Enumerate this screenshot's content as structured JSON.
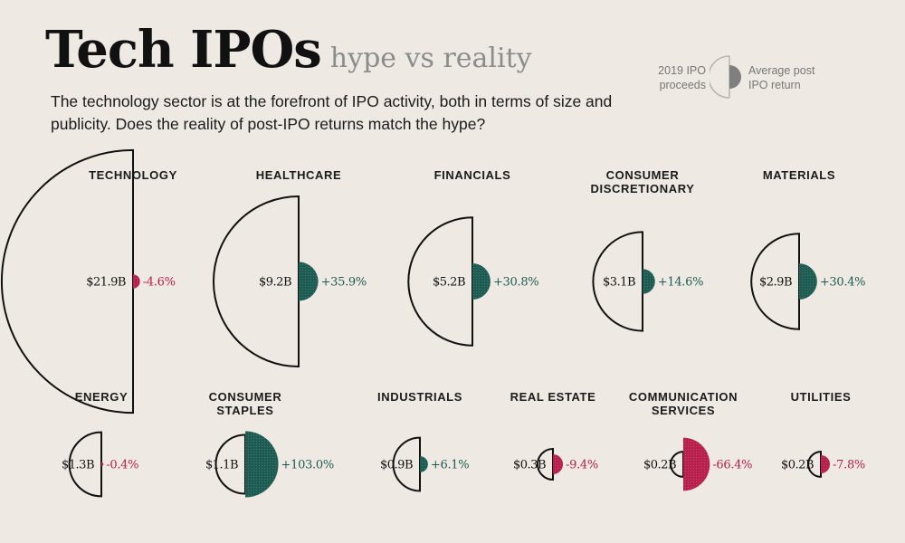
{
  "header": {
    "title": "Tech IPOs",
    "subtitle": "hype vs reality",
    "intro": "The technology sector is at the forefront of IPO activity, both in terms of size and publicity. Does the reality of post-IPO returns match the hype?"
  },
  "legend": {
    "left_line1": "2019 IPO",
    "left_line2": "proceeds",
    "right_line1": "Average post",
    "right_line2": "IPO return"
  },
  "colors": {
    "positive": "#1d5c52",
    "negative": "#b71f4d",
    "outline": "#111111",
    "legend_grey": "#7f7f7f",
    "background": "#eee9e3"
  },
  "chart_data": {
    "type": "semicircle-pairs",
    "units": {
      "proceeds": "USD billions",
      "return": "percent"
    },
    "sectors": [
      {
        "name_lines": [
          "TECHNOLOGY"
        ],
        "proceeds": 21.9,
        "proceeds_label": "$21.9B",
        "return": -4.6,
        "return_label": "-4.6%"
      },
      {
        "name_lines": [
          "HEALTHCARE"
        ],
        "proceeds": 9.2,
        "proceeds_label": "$9.2B",
        "return": 35.9,
        "return_label": "+35.9%"
      },
      {
        "name_lines": [
          "FINANCIALS"
        ],
        "proceeds": 5.2,
        "proceeds_label": "$5.2B",
        "return": 30.8,
        "return_label": "+30.8%"
      },
      {
        "name_lines": [
          "CONSUMER",
          "DISCRETIONARY"
        ],
        "proceeds": 3.1,
        "proceeds_label": "$3.1B",
        "return": 14.6,
        "return_label": "+14.6%"
      },
      {
        "name_lines": [
          "MATERIALS"
        ],
        "proceeds": 2.9,
        "proceeds_label": "$2.9B",
        "return": 30.4,
        "return_label": "+30.4%"
      },
      {
        "name_lines": [
          "ENERGY"
        ],
        "proceeds": 1.3,
        "proceeds_label": "$1.3B",
        "return": -0.4,
        "return_label": "-0.4%"
      },
      {
        "name_lines": [
          "CONSUMER",
          "STAPLES"
        ],
        "proceeds": 1.1,
        "proceeds_label": "$1.1B",
        "return": 103.0,
        "return_label": "+103.0%"
      },
      {
        "name_lines": [
          "INDUSTRIALS"
        ],
        "proceeds": 0.9,
        "proceeds_label": "$0.9B",
        "return": 6.1,
        "return_label": "+6.1%"
      },
      {
        "name_lines": [
          "REAL ESTATE"
        ],
        "proceeds": 0.3,
        "proceeds_label": "$0.3B",
        "return": -9.4,
        "return_label": "-9.4%"
      },
      {
        "name_lines": [
          "COMMUNICATION",
          "SERVICES"
        ],
        "proceeds": 0.2,
        "proceeds_label": "$0.2B",
        "return": -66.4,
        "return_label": "-66.4%"
      },
      {
        "name_lines": [
          "UTILITIES"
        ],
        "proceeds": 0.2,
        "proceeds_label": "$0.2B",
        "return": -7.8,
        "return_label": "-7.8%"
      }
    ]
  }
}
